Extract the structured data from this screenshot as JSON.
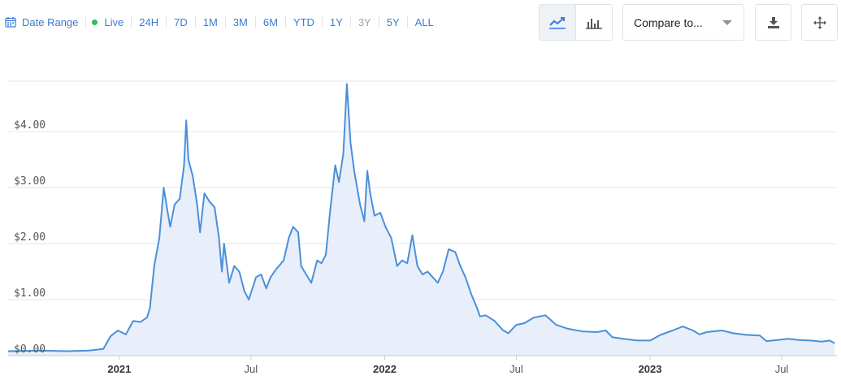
{
  "toolbar": {
    "date_range_label": "Date Range",
    "live_label": "Live",
    "ranges": [
      "24H",
      "7D",
      "1M",
      "3M",
      "6M",
      "YTD",
      "1Y",
      "3Y",
      "5Y",
      "ALL"
    ],
    "disabled_ranges": [
      "3Y"
    ],
    "compare_label": "Compare to...",
    "accent_color": "#3a7bd5",
    "live_color": "#2ebd59",
    "icons": {
      "date_range": "calendar-icon",
      "line_view": "line-chart-icon",
      "bar_view": "bar-chart-icon",
      "compare": "chevron-down-icon",
      "download": "download-icon",
      "fullscreen": "move-arrows-icon"
    }
  },
  "chart_data": {
    "type": "area",
    "title": "",
    "xlabel": "",
    "ylabel": "",
    "line_color": "#4a90d9",
    "fill_color": "#e8eefa",
    "grid": true,
    "y_prefix": "$ ",
    "ylim": [
      0,
      4.9
    ],
    "y_ticks": [
      0,
      1,
      2,
      3,
      4
    ],
    "y_tick_labels": [
      "$0.00",
      "$1.00",
      "$2.00",
      "$3.00",
      "$4.00"
    ],
    "xlim": [
      "2020-08-01",
      "2023-09-15"
    ],
    "x_ticks": [
      {
        "date": "2021-01-01",
        "label": "2021",
        "major": true
      },
      {
        "date": "2021-07-01",
        "label": "Jul",
        "major": false
      },
      {
        "date": "2022-01-01",
        "label": "2022",
        "major": true
      },
      {
        "date": "2022-07-01",
        "label": "Jul",
        "major": false
      },
      {
        "date": "2023-01-01",
        "label": "2023",
        "major": true
      },
      {
        "date": "2023-07-01",
        "label": "Jul",
        "major": false
      }
    ],
    "points": [
      [
        "2020-08-01",
        0.08
      ],
      [
        "2020-09-15",
        0.09
      ],
      [
        "2020-10-20",
        0.08
      ],
      [
        "2020-11-20",
        0.09
      ],
      [
        "2020-12-10",
        0.12
      ],
      [
        "2020-12-20",
        0.35
      ],
      [
        "2020-12-30",
        0.45
      ],
      [
        "2021-01-10",
        0.38
      ],
      [
        "2021-01-20",
        0.62
      ],
      [
        "2021-01-30",
        0.6
      ],
      [
        "2021-02-08",
        0.68
      ],
      [
        "2021-02-12",
        0.85
      ],
      [
        "2021-02-18",
        1.6
      ],
      [
        "2021-02-25",
        2.1
      ],
      [
        "2021-03-03",
        3.0
      ],
      [
        "2021-03-08",
        2.6
      ],
      [
        "2021-03-12",
        2.3
      ],
      [
        "2021-03-18",
        2.7
      ],
      [
        "2021-03-25",
        2.8
      ],
      [
        "2021-03-31",
        3.4
      ],
      [
        "2021-04-03",
        4.2
      ],
      [
        "2021-04-06",
        3.5
      ],
      [
        "2021-04-12",
        3.2
      ],
      [
        "2021-04-18",
        2.7
      ],
      [
        "2021-04-22",
        2.2
      ],
      [
        "2021-04-28",
        2.9
      ],
      [
        "2021-05-05",
        2.75
      ],
      [
        "2021-05-12",
        2.65
      ],
      [
        "2021-05-18",
        2.1
      ],
      [
        "2021-05-22",
        1.5
      ],
      [
        "2021-05-25",
        2.0
      ],
      [
        "2021-06-01",
        1.3
      ],
      [
        "2021-06-08",
        1.6
      ],
      [
        "2021-06-15",
        1.5
      ],
      [
        "2021-06-22",
        1.15
      ],
      [
        "2021-06-28",
        1.0
      ],
      [
        "2021-07-08",
        1.4
      ],
      [
        "2021-07-15",
        1.45
      ],
      [
        "2021-07-22",
        1.2
      ],
      [
        "2021-07-28",
        1.4
      ],
      [
        "2021-08-05",
        1.55
      ],
      [
        "2021-08-15",
        1.7
      ],
      [
        "2021-08-22",
        2.1
      ],
      [
        "2021-08-28",
        2.3
      ],
      [
        "2021-09-04",
        2.2
      ],
      [
        "2021-09-08",
        1.6
      ],
      [
        "2021-09-15",
        1.45
      ],
      [
        "2021-09-22",
        1.3
      ],
      [
        "2021-09-30",
        1.7
      ],
      [
        "2021-10-06",
        1.65
      ],
      [
        "2021-10-12",
        1.8
      ],
      [
        "2021-10-18",
        2.6
      ],
      [
        "2021-10-25",
        3.4
      ],
      [
        "2021-10-30",
        3.1
      ],
      [
        "2021-11-05",
        3.6
      ],
      [
        "2021-11-10",
        4.85
      ],
      [
        "2021-11-15",
        3.8
      ],
      [
        "2021-11-20",
        3.3
      ],
      [
        "2021-11-28",
        2.7
      ],
      [
        "2021-12-04",
        2.4
      ],
      [
        "2021-12-08",
        3.3
      ],
      [
        "2021-12-12",
        2.9
      ],
      [
        "2021-12-18",
        2.5
      ],
      [
        "2021-12-26",
        2.55
      ],
      [
        "2022-01-02",
        2.3
      ],
      [
        "2022-01-10",
        2.1
      ],
      [
        "2022-01-18",
        1.6
      ],
      [
        "2022-01-25",
        1.7
      ],
      [
        "2022-02-01",
        1.65
      ],
      [
        "2022-02-08",
        2.15
      ],
      [
        "2022-02-15",
        1.6
      ],
      [
        "2022-02-22",
        1.45
      ],
      [
        "2022-03-01",
        1.5
      ],
      [
        "2022-03-08",
        1.4
      ],
      [
        "2022-03-15",
        1.3
      ],
      [
        "2022-03-22",
        1.5
      ],
      [
        "2022-03-30",
        1.9
      ],
      [
        "2022-04-08",
        1.85
      ],
      [
        "2022-04-15",
        1.6
      ],
      [
        "2022-04-22",
        1.4
      ],
      [
        "2022-04-30",
        1.1
      ],
      [
        "2022-05-08",
        0.85
      ],
      [
        "2022-05-12",
        0.7
      ],
      [
        "2022-05-20",
        0.72
      ],
      [
        "2022-06-01",
        0.62
      ],
      [
        "2022-06-13",
        0.45
      ],
      [
        "2022-06-20",
        0.4
      ],
      [
        "2022-07-01",
        0.55
      ],
      [
        "2022-07-12",
        0.58
      ],
      [
        "2022-07-25",
        0.68
      ],
      [
        "2022-08-10",
        0.72
      ],
      [
        "2022-08-25",
        0.55
      ],
      [
        "2022-09-10",
        0.48
      ],
      [
        "2022-10-01",
        0.43
      ],
      [
        "2022-10-20",
        0.42
      ],
      [
        "2022-11-01",
        0.45
      ],
      [
        "2022-11-10",
        0.33
      ],
      [
        "2022-11-25",
        0.3
      ],
      [
        "2022-12-15",
        0.27
      ],
      [
        "2023-01-01",
        0.27
      ],
      [
        "2023-01-15",
        0.37
      ],
      [
        "2023-02-01",
        0.45
      ],
      [
        "2023-02-15",
        0.52
      ],
      [
        "2023-03-01",
        0.45
      ],
      [
        "2023-03-10",
        0.38
      ],
      [
        "2023-03-20",
        0.42
      ],
      [
        "2023-04-10",
        0.45
      ],
      [
        "2023-04-25",
        0.4
      ],
      [
        "2023-05-15",
        0.37
      ],
      [
        "2023-06-01",
        0.36
      ],
      [
        "2023-06-10",
        0.26
      ],
      [
        "2023-06-25",
        0.28
      ],
      [
        "2023-07-10",
        0.3
      ],
      [
        "2023-07-25",
        0.28
      ],
      [
        "2023-08-10",
        0.27
      ],
      [
        "2023-08-25",
        0.25
      ],
      [
        "2023-09-05",
        0.27
      ],
      [
        "2023-09-12",
        0.22
      ]
    ]
  }
}
